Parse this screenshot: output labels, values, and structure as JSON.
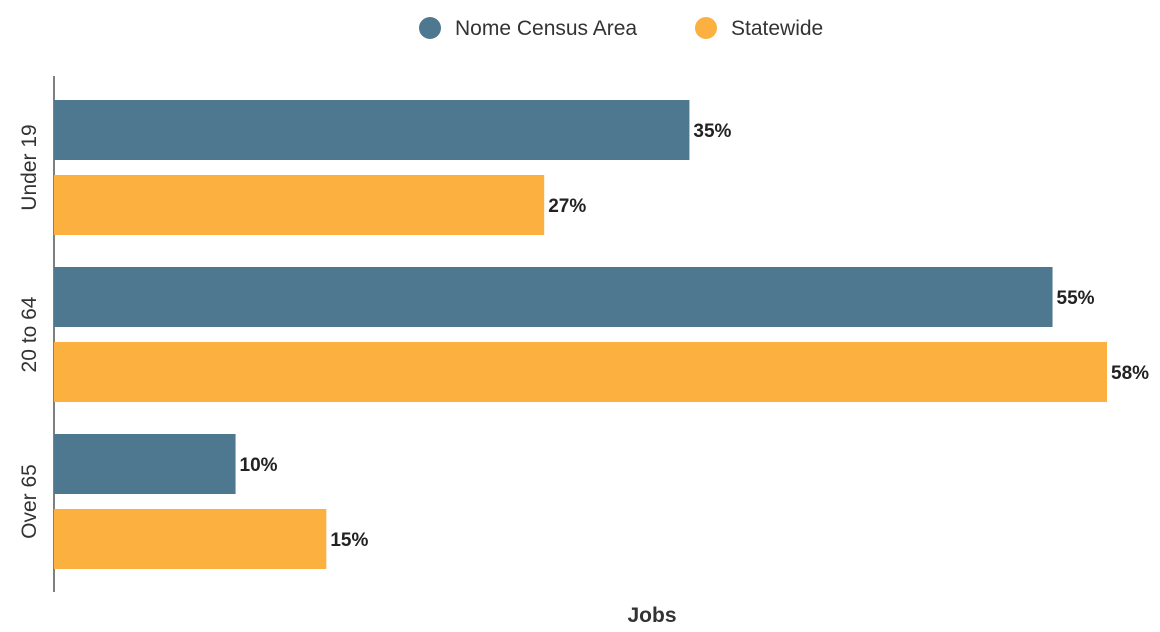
{
  "chart_data": {
    "type": "bar",
    "orientation": "horizontal",
    "categories": [
      "Under 19",
      "20 to 64",
      "Over 65"
    ],
    "series": [
      {
        "name": "Nome Census Area",
        "color": "#4e7790",
        "values": [
          35,
          55,
          10
        ],
        "labels": [
          "35%",
          "55%",
          "10%"
        ]
      },
      {
        "name": "Statewide",
        "color": "#fbb040",
        "values": [
          27,
          58,
          15
        ],
        "labels": [
          "27%",
          "58%",
          "15%"
        ]
      }
    ],
    "xlabel": "Jobs",
    "xlim": [
      0,
      58
    ],
    "grid": false,
    "legend_position": "top-center"
  }
}
